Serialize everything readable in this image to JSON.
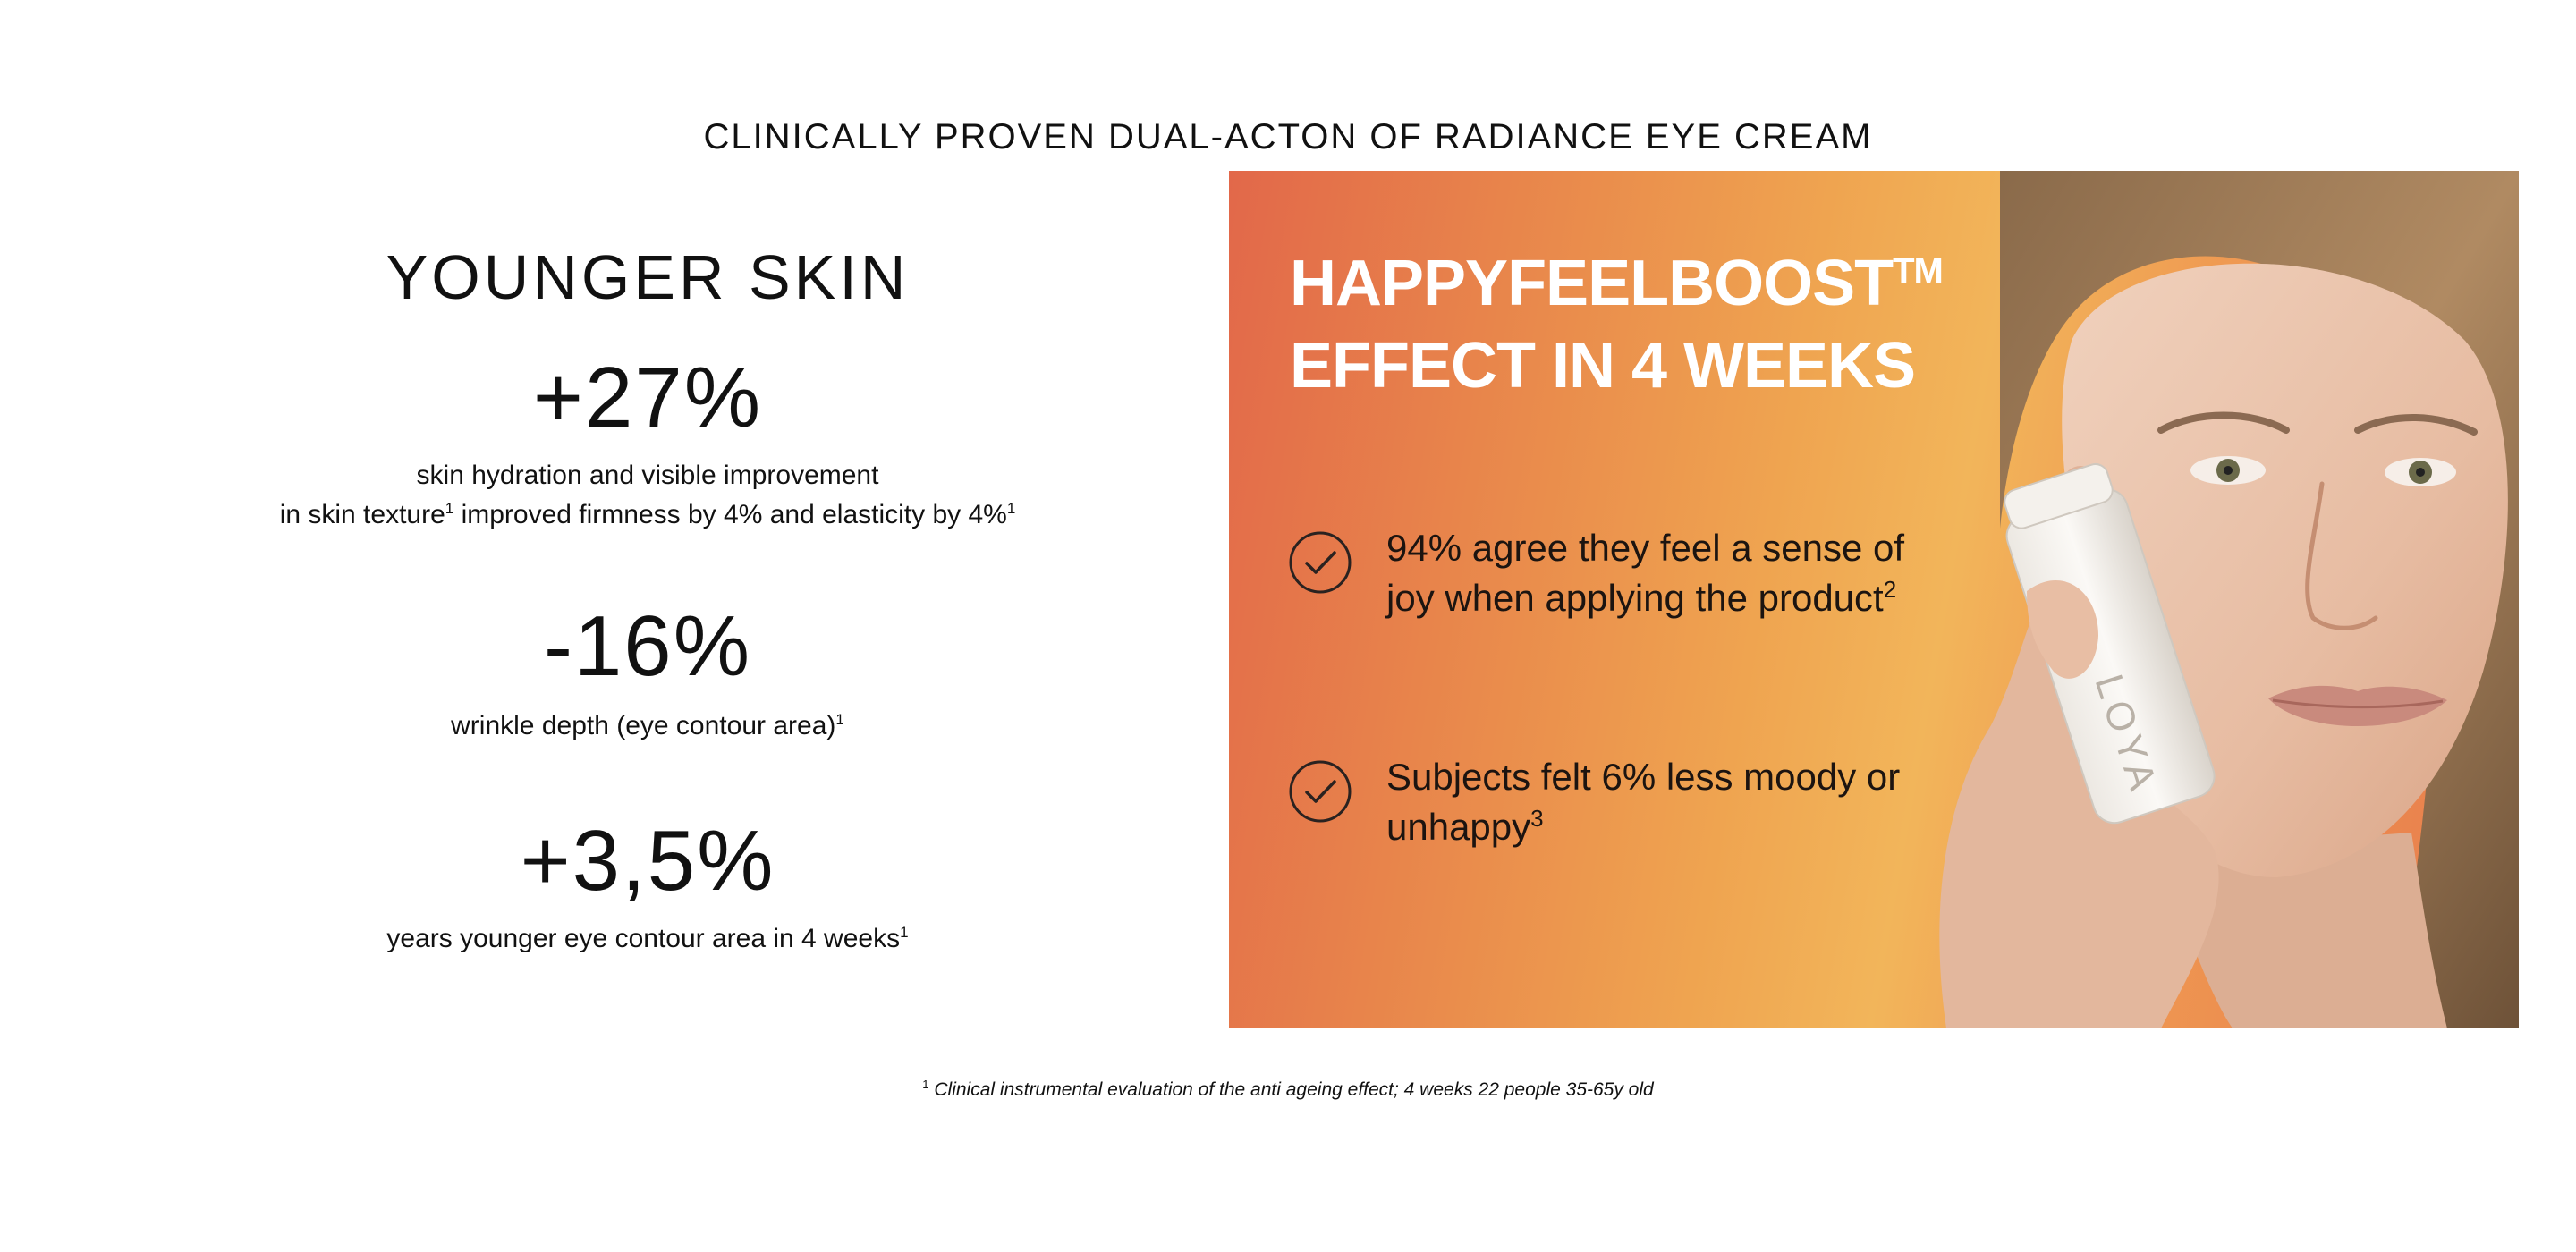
{
  "header": {
    "title": "CLINICALLY PROVEN DUAL-ACTON OF RADIANCE EYE CREAM"
  },
  "stats": {
    "heading": "YOUNGER SKIN",
    "items": [
      {
        "value": "+27%",
        "desc_line1": "skin hydration and visible improvement",
        "desc_line2a": "in skin texture",
        "desc_line2a_sup": "1",
        "desc_line2b": " improved firmness by 4% and elasticity by 4%",
        "desc_line2b_sup": "1"
      },
      {
        "value": "-16%",
        "desc": "wrinkle depth (eye contour area)",
        "desc_sup": "1"
      },
      {
        "value": "+3,5%",
        "desc": "years younger eye contour area in 4 weeks",
        "desc_sup": "1"
      }
    ]
  },
  "promo": {
    "heading_line1": "HAPPYFEELBOOST",
    "heading_tm": "TM",
    "heading_line2": "EFFECT IN 4 WEEKS",
    "benefits": [
      {
        "icon": "check-circle-icon",
        "text": "94% agree they feel a sense of joy when applying the product",
        "sup": "2"
      },
      {
        "icon": "check-circle-icon",
        "text": "Subjects felt 6% less moody or unhappy",
        "sup": "3"
      }
    ],
    "image": {
      "alt": "Woman holding LOYA eye cream tube against her cheek",
      "product_label": "LOYA"
    },
    "colors": {
      "gradient_start": "#e2684a",
      "gradient_mid": "#f2b55a",
      "gradient_end": "#e87a4c",
      "heading": "#ffffff"
    }
  },
  "footnote": {
    "sup": "1",
    "text": " Clinical instrumental evaluation of the anti ageing effect; 4 weeks 22 people 35-65y old"
  }
}
